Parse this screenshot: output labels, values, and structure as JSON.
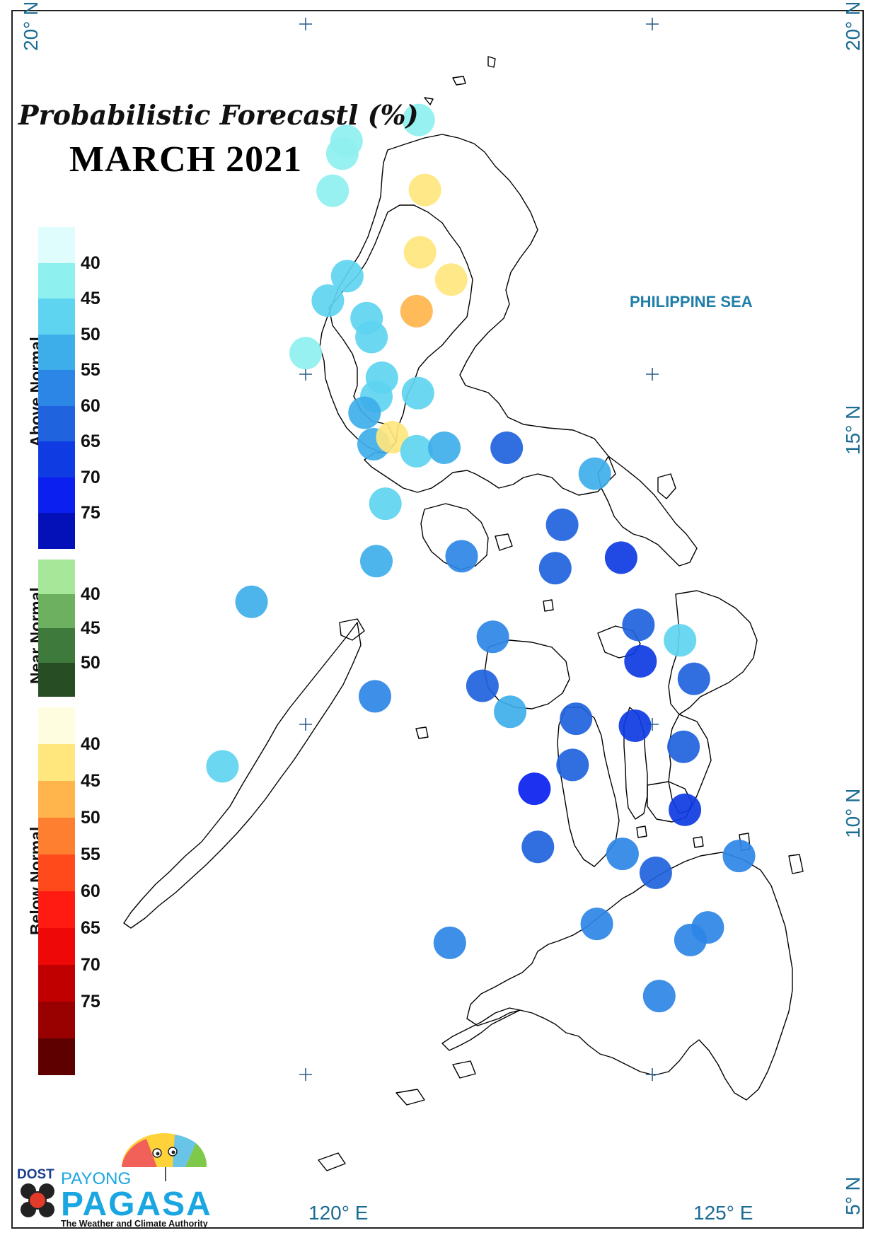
{
  "title": {
    "line1": "Probabilistic Forecastl (%)",
    "line2": "MARCH 2021"
  },
  "sea_label": "PHILIPPINE SEA",
  "coordinates": {
    "lat_20_left": "20° N",
    "lat_20_right": "20° N",
    "lat_15_right": "15° N",
    "lat_10_right": "10° N",
    "lat_5_right": "5° N",
    "lon_120": "120° E",
    "lon_125": "125° E"
  },
  "legend": {
    "above_normal": {
      "label": "Above Normal",
      "colors": [
        "#e0fdfd",
        "#8ff0f0",
        "#5ed4f0",
        "#3eaeea",
        "#2c86e6",
        "#1f63de",
        "#0e3be2",
        "#0a1ff0",
        "#0511b8"
      ],
      "ticks": [
        "40",
        "45",
        "50",
        "55",
        "60",
        "65",
        "70",
        "75"
      ]
    },
    "near_normal": {
      "label": "Near Normal",
      "colors": [
        "#a6e79a",
        "#6cb060",
        "#3f7a3d",
        "#264d24"
      ],
      "ticks": [
        "40",
        "45",
        "50"
      ]
    },
    "below_normal": {
      "label": "Below Normal",
      "colors": [
        "#fffde0",
        "#ffe67d",
        "#ffb44c",
        "#ff7f30",
        "#ff4a1c",
        "#ff1b12",
        "#ee0808",
        "#c00000",
        "#990000",
        "#5f0000"
      ],
      "ticks": [
        "40",
        "45",
        "50",
        "55",
        "60",
        "65",
        "70",
        "75"
      ]
    }
  },
  "stations": [
    {
      "lon": 121.63,
      "lat": 18.63,
      "value": 40,
      "category": "above"
    },
    {
      "lon": 120.59,
      "lat": 18.33,
      "value": 40,
      "category": "above"
    },
    {
      "lon": 120.53,
      "lat": 18.15,
      "value": 40,
      "category": "above"
    },
    {
      "lon": 120.39,
      "lat": 17.62,
      "value": 40,
      "category": "above"
    },
    {
      "lon": 121.72,
      "lat": 17.63,
      "value": 40,
      "category": "below"
    },
    {
      "lon": 121.65,
      "lat": 16.74,
      "value": 40,
      "category": "below"
    },
    {
      "lon": 122.1,
      "lat": 16.35,
      "value": 40,
      "category": "below"
    },
    {
      "lon": 121.6,
      "lat": 15.9,
      "value": 45,
      "category": "below"
    },
    {
      "lon": 120.6,
      "lat": 16.4,
      "value": 45,
      "category": "above"
    },
    {
      "lon": 120.32,
      "lat": 16.05,
      "value": 45,
      "category": "above"
    },
    {
      "lon": 120.88,
      "lat": 15.8,
      "value": 45,
      "category": "above"
    },
    {
      "lon": 120.95,
      "lat": 15.53,
      "value": 45,
      "category": "above"
    },
    {
      "lon": 120.0,
      "lat": 15.3,
      "value": 40,
      "category": "above"
    },
    {
      "lon": 121.1,
      "lat": 14.95,
      "value": 45,
      "category": "above"
    },
    {
      "lon": 121.02,
      "lat": 14.68,
      "value": 45,
      "category": "above"
    },
    {
      "lon": 121.62,
      "lat": 14.73,
      "value": 45,
      "category": "above"
    },
    {
      "lon": 120.85,
      "lat": 14.45,
      "value": 50,
      "category": "above"
    },
    {
      "lon": 120.98,
      "lat": 14.0,
      "value": 50,
      "category": "above"
    },
    {
      "lon": 121.25,
      "lat": 14.1,
      "value": 40,
      "category": "below"
    },
    {
      "lon": 121.6,
      "lat": 13.9,
      "value": 45,
      "category": "above"
    },
    {
      "lon": 122.0,
      "lat": 13.95,
      "value": 50,
      "category": "above"
    },
    {
      "lon": 122.9,
      "lat": 13.95,
      "value": 60,
      "category": "above"
    },
    {
      "lon": 124.17,
      "lat": 13.58,
      "value": 50,
      "category": "above"
    },
    {
      "lon": 123.7,
      "lat": 12.85,
      "value": 60,
      "category": "above"
    },
    {
      "lon": 121.15,
      "lat": 13.15,
      "value": 45,
      "category": "above"
    },
    {
      "lon": 122.25,
      "lat": 12.4,
      "value": 55,
      "category": "above"
    },
    {
      "lon": 121.02,
      "lat": 12.33,
      "value": 50,
      "category": "above"
    },
    {
      "lon": 123.6,
      "lat": 12.23,
      "value": 60,
      "category": "above"
    },
    {
      "lon": 124.55,
      "lat": 12.38,
      "value": 65,
      "category": "above"
    },
    {
      "lon": 119.22,
      "lat": 11.75,
      "value": 50,
      "category": "above"
    },
    {
      "lon": 124.8,
      "lat": 11.42,
      "value": 60,
      "category": "above"
    },
    {
      "lon": 125.4,
      "lat": 11.2,
      "value": 45,
      "category": "above"
    },
    {
      "lon": 122.7,
      "lat": 11.25,
      "value": 55,
      "category": "above"
    },
    {
      "lon": 124.83,
      "lat": 10.9,
      "value": 65,
      "category": "above"
    },
    {
      "lon": 125.6,
      "lat": 10.65,
      "value": 60,
      "category": "above"
    },
    {
      "lon": 121.0,
      "lat": 10.4,
      "value": 55,
      "category": "above"
    },
    {
      "lon": 122.55,
      "lat": 10.55,
      "value": 60,
      "category": "above"
    },
    {
      "lon": 122.95,
      "lat": 10.18,
      "value": 50,
      "category": "above"
    },
    {
      "lon": 123.9,
      "lat": 10.08,
      "value": 60,
      "category": "above"
    },
    {
      "lon": 124.75,
      "lat": 9.98,
      "value": 65,
      "category": "above"
    },
    {
      "lon": 125.45,
      "lat": 9.68,
      "value": 60,
      "category": "above"
    },
    {
      "lon": 123.85,
      "lat": 9.42,
      "value": 60,
      "category": "above"
    },
    {
      "lon": 118.8,
      "lat": 9.4,
      "value": 45,
      "category": "above"
    },
    {
      "lon": 123.3,
      "lat": 9.08,
      "value": 70,
      "category": "above"
    },
    {
      "lon": 125.47,
      "lat": 8.78,
      "value": 65,
      "category": "above"
    },
    {
      "lon": 123.35,
      "lat": 8.25,
      "value": 60,
      "category": "above"
    },
    {
      "lon": 124.57,
      "lat": 8.15,
      "value": 55,
      "category": "above"
    },
    {
      "lon": 126.25,
      "lat": 8.12,
      "value": 55,
      "category": "above"
    },
    {
      "lon": 125.05,
      "lat": 7.88,
      "value": 60,
      "category": "above"
    },
    {
      "lon": 124.2,
      "lat": 7.15,
      "value": 55,
      "category": "above"
    },
    {
      "lon": 125.8,
      "lat": 7.1,
      "value": 55,
      "category": "above"
    },
    {
      "lon": 125.55,
      "lat": 6.92,
      "value": 55,
      "category": "above"
    },
    {
      "lon": 122.08,
      "lat": 6.88,
      "value": 55,
      "category": "above"
    },
    {
      "lon": 125.1,
      "lat": 6.12,
      "value": 55,
      "category": "above"
    }
  ],
  "logo": {
    "agency": "DOST",
    "brand_top": "PAYONG",
    "brand_main": "PAGASA",
    "tagline": "The Weather and Climate Authority"
  }
}
